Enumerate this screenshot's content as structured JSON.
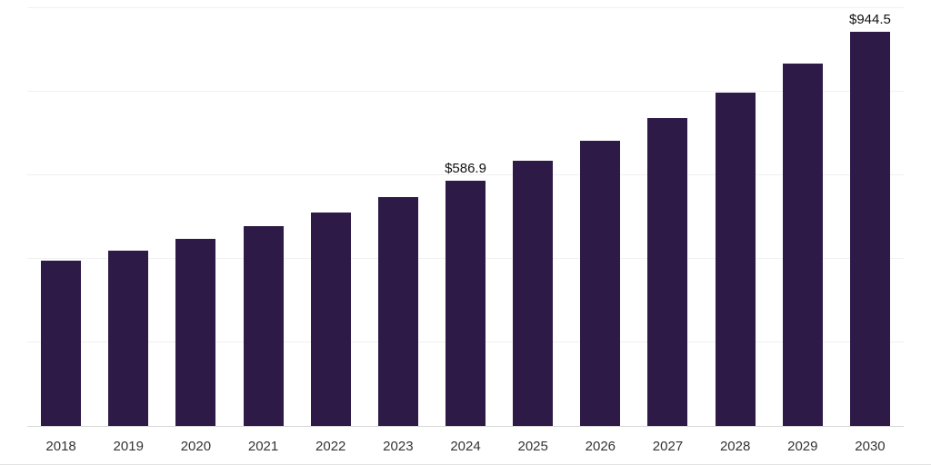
{
  "chart_data": {
    "type": "bar",
    "title": "",
    "xlabel": "",
    "ylabel": "",
    "categories": [
      "2018",
      "2019",
      "2020",
      "2021",
      "2022",
      "2023",
      "2024",
      "2025",
      "2026",
      "2027",
      "2028",
      "2029",
      "2030"
    ],
    "values": [
      395,
      420,
      447,
      478,
      512,
      549,
      586.9,
      634,
      682,
      738,
      799,
      868,
      944.5
    ],
    "annotations": {
      "2024": "$586.9",
      "2030": "$944.5"
    },
    "ylim": [
      0,
      1000
    ],
    "grid_step": 200,
    "grid": true,
    "legend": "none",
    "bar_color": "#2e1a47"
  },
  "colors": {
    "background": "#ffffff",
    "gridline": "#f0f0f0",
    "axis_line": "#d8d8d8",
    "axis_label": "#333333",
    "annotation_text": "#111111"
  }
}
